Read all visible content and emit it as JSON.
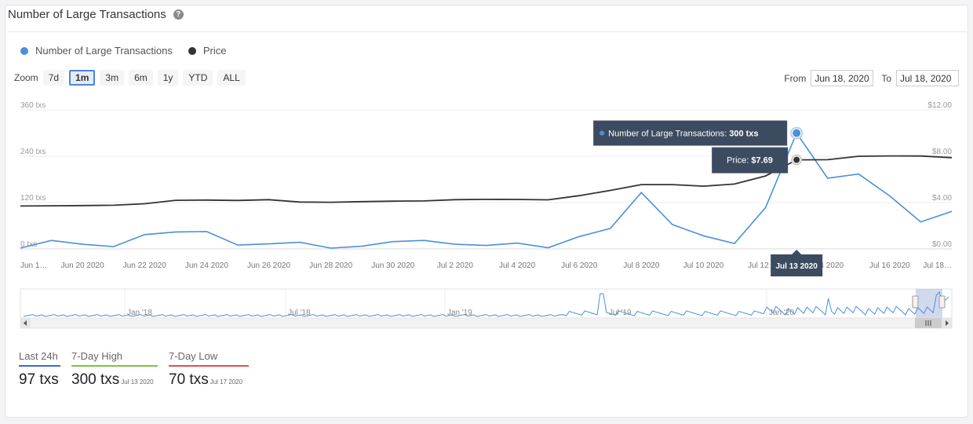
{
  "header": {
    "title": "Number of Large Transactions",
    "help_icon": "question-circle-icon"
  },
  "legend": [
    {
      "name": "Number of Large Transactions",
      "color": "#4a90d9"
    },
    {
      "name": "Price",
      "color": "#333333"
    }
  ],
  "zoom": {
    "label": "Zoom",
    "buttons": [
      "7d",
      "1m",
      "3m",
      "6m",
      "1y",
      "YTD",
      "ALL"
    ],
    "selected": "1m"
  },
  "range": {
    "from_label": "From",
    "from_value": "Jun 18, 2020",
    "to_label": "To",
    "to_value": "Jul 18, 2020"
  },
  "chart_data": {
    "type": "line",
    "x": [
      "Jun 18",
      "Jun 19",
      "Jun 20",
      "Jun 21",
      "Jun 22",
      "Jun 23",
      "Jun 24",
      "Jun 25",
      "Jun 26",
      "Jun 27",
      "Jun 28",
      "Jun 29",
      "Jun 30",
      "Jul 1",
      "Jul 2",
      "Jul 3",
      "Jul 4",
      "Jul 5",
      "Jul 6",
      "Jul 7",
      "Jul 8",
      "Jul 9",
      "Jul 10",
      "Jul 11",
      "Jul 12",
      "Jul 13",
      "Jul 14",
      "Jul 15",
      "Jul 16",
      "Jul 17",
      "Jul 18"
    ],
    "series": [
      {
        "name": "Number of Large Transactions",
        "axis": "left",
        "color": "#4a90d9",
        "values": [
          2,
          22,
          12,
          6,
          37,
          44,
          45,
          10,
          13,
          17,
          2,
          7,
          19,
          22,
          12,
          9,
          15,
          3,
          32,
          53,
          146,
          63,
          34,
          14,
          107,
          300,
          183,
          194,
          137,
          70,
          97
        ]
      },
      {
        "name": "Price",
        "axis": "right",
        "color": "#333333",
        "values": [
          3.7,
          3.72,
          3.74,
          3.77,
          3.9,
          4.2,
          4.22,
          4.18,
          4.25,
          4.05,
          4.03,
          4.08,
          4.12,
          4.14,
          4.25,
          4.28,
          4.27,
          4.24,
          4.6,
          5.05,
          5.55,
          5.55,
          5.42,
          5.6,
          6.3,
          7.69,
          7.7,
          8.0,
          8.03,
          8.02,
          7.88
        ]
      }
    ],
    "x_tick_labels": [
      "Jun 1…",
      "Jun 20 2020",
      "Jun 22 2020",
      "Jun 24 2020",
      "Jun 26 2020",
      "Jun 28 2020",
      "Jun 30 2020",
      "Jul 2 2020",
      "Jul 4 2020",
      "Jul 6 2020",
      "Jul 8 2020",
      "Jul 10 2020",
      "Jul 12 2…",
      "…4 2020",
      "Jul 16 2020",
      "Jul 18…"
    ],
    "left_axis": {
      "ticks": [
        "0 txs",
        "120 txs",
        "240 txs",
        "360 txs"
      ],
      "ylim": [
        0,
        360
      ]
    },
    "right_axis": {
      "ticks": [
        "$0.00",
        "$4.00",
        "$8.00",
        "$12.00"
      ],
      "ylim": [
        0,
        12
      ]
    },
    "tooltip": {
      "date": "Jul 13 2020",
      "tx_label": "Number of Large Transactions: ",
      "tx_value": "300 txs",
      "price_label": "Price: ",
      "price_value": "$7.69"
    },
    "navigator_labels": [
      "Jan '18",
      "Jul '18",
      "Jan '19",
      "Jul '19",
      "Jan '20"
    ]
  },
  "stats": [
    {
      "label": "Last 24h",
      "value": "97 txs",
      "date": "",
      "color": "#3a6fc0"
    },
    {
      "label": "7-Day High",
      "value": "300 txs",
      "date": "Jul 13 2020",
      "color": "#7cc242"
    },
    {
      "label": "7-Day Low",
      "value": "70 txs",
      "date": "Jul 17 2020",
      "color": "#d9534f"
    }
  ]
}
